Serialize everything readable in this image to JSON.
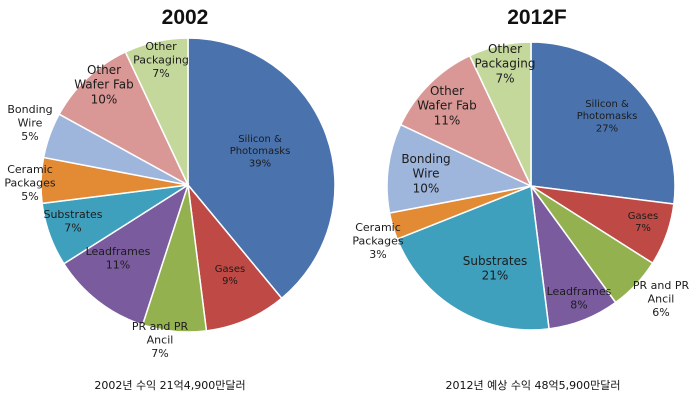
{
  "chart_data": [
    {
      "type": "pie",
      "title": "2002",
      "caption": "2002년 수익 21억4,900만달러",
      "slices": [
        {
          "label": "Silicon & Photomasks",
          "value": 39,
          "display": "39%",
          "color": "#4a72ad"
        },
        {
          "label": "Gases",
          "value": 9,
          "display": "9%",
          "color": "#bf4a45"
        },
        {
          "label": "PR and PR Ancil",
          "value": 7,
          "display": "7%",
          "color": "#93b24f"
        },
        {
          "label": "Leadframes",
          "value": 11,
          "display": "11%",
          "color": "#7a5c9e"
        },
        {
          "label": "Substrates",
          "value": 7,
          "display": "7%",
          "color": "#3fa0be"
        },
        {
          "label": "Ceramic Packages",
          "value": 5,
          "display": "5%",
          "color": "#e28a34"
        },
        {
          "label": "Bonding Wire",
          "value": 5,
          "display": "5%",
          "color": "#9eb5dc"
        },
        {
          "label": "Other Wafer Fab",
          "value": 10,
          "display": "10%",
          "color": "#d99896"
        },
        {
          "label": "Other Packaging",
          "value": 7,
          "display": "7%",
          "color": "#c5d89c"
        }
      ]
    },
    {
      "type": "pie",
      "title": "2012F",
      "caption": "2012년 예상 수익 48억5,900만달러",
      "slices": [
        {
          "label": "Silicon & Photomasks",
          "value": 27,
          "display": "27%",
          "color": "#4a72ad"
        },
        {
          "label": "Gases",
          "value": 7,
          "display": "7%",
          "color": "#bf4a45"
        },
        {
          "label": "PR and PR Ancil",
          "value": 6,
          "display": "6%",
          "color": "#93b24f"
        },
        {
          "label": "Leadframes",
          "value": 8,
          "display": "8%",
          "color": "#7a5c9e"
        },
        {
          "label": "Substrates",
          "value": 21,
          "display": "21%",
          "color": "#3fa0be"
        },
        {
          "label": "Ceramic Packages",
          "value": 3,
          "display": "3%",
          "color": "#e28a34"
        },
        {
          "label": "Bonding Wire",
          "value": 10,
          "display": "10%",
          "color": "#9eb5dc"
        },
        {
          "label": "Other Wafer Fab",
          "value": 11,
          "display": "11%",
          "color": "#d99896"
        },
        {
          "label": "Other Packaging",
          "value": 7,
          "display": "7%",
          "color": "#c5d89c"
        }
      ]
    }
  ]
}
